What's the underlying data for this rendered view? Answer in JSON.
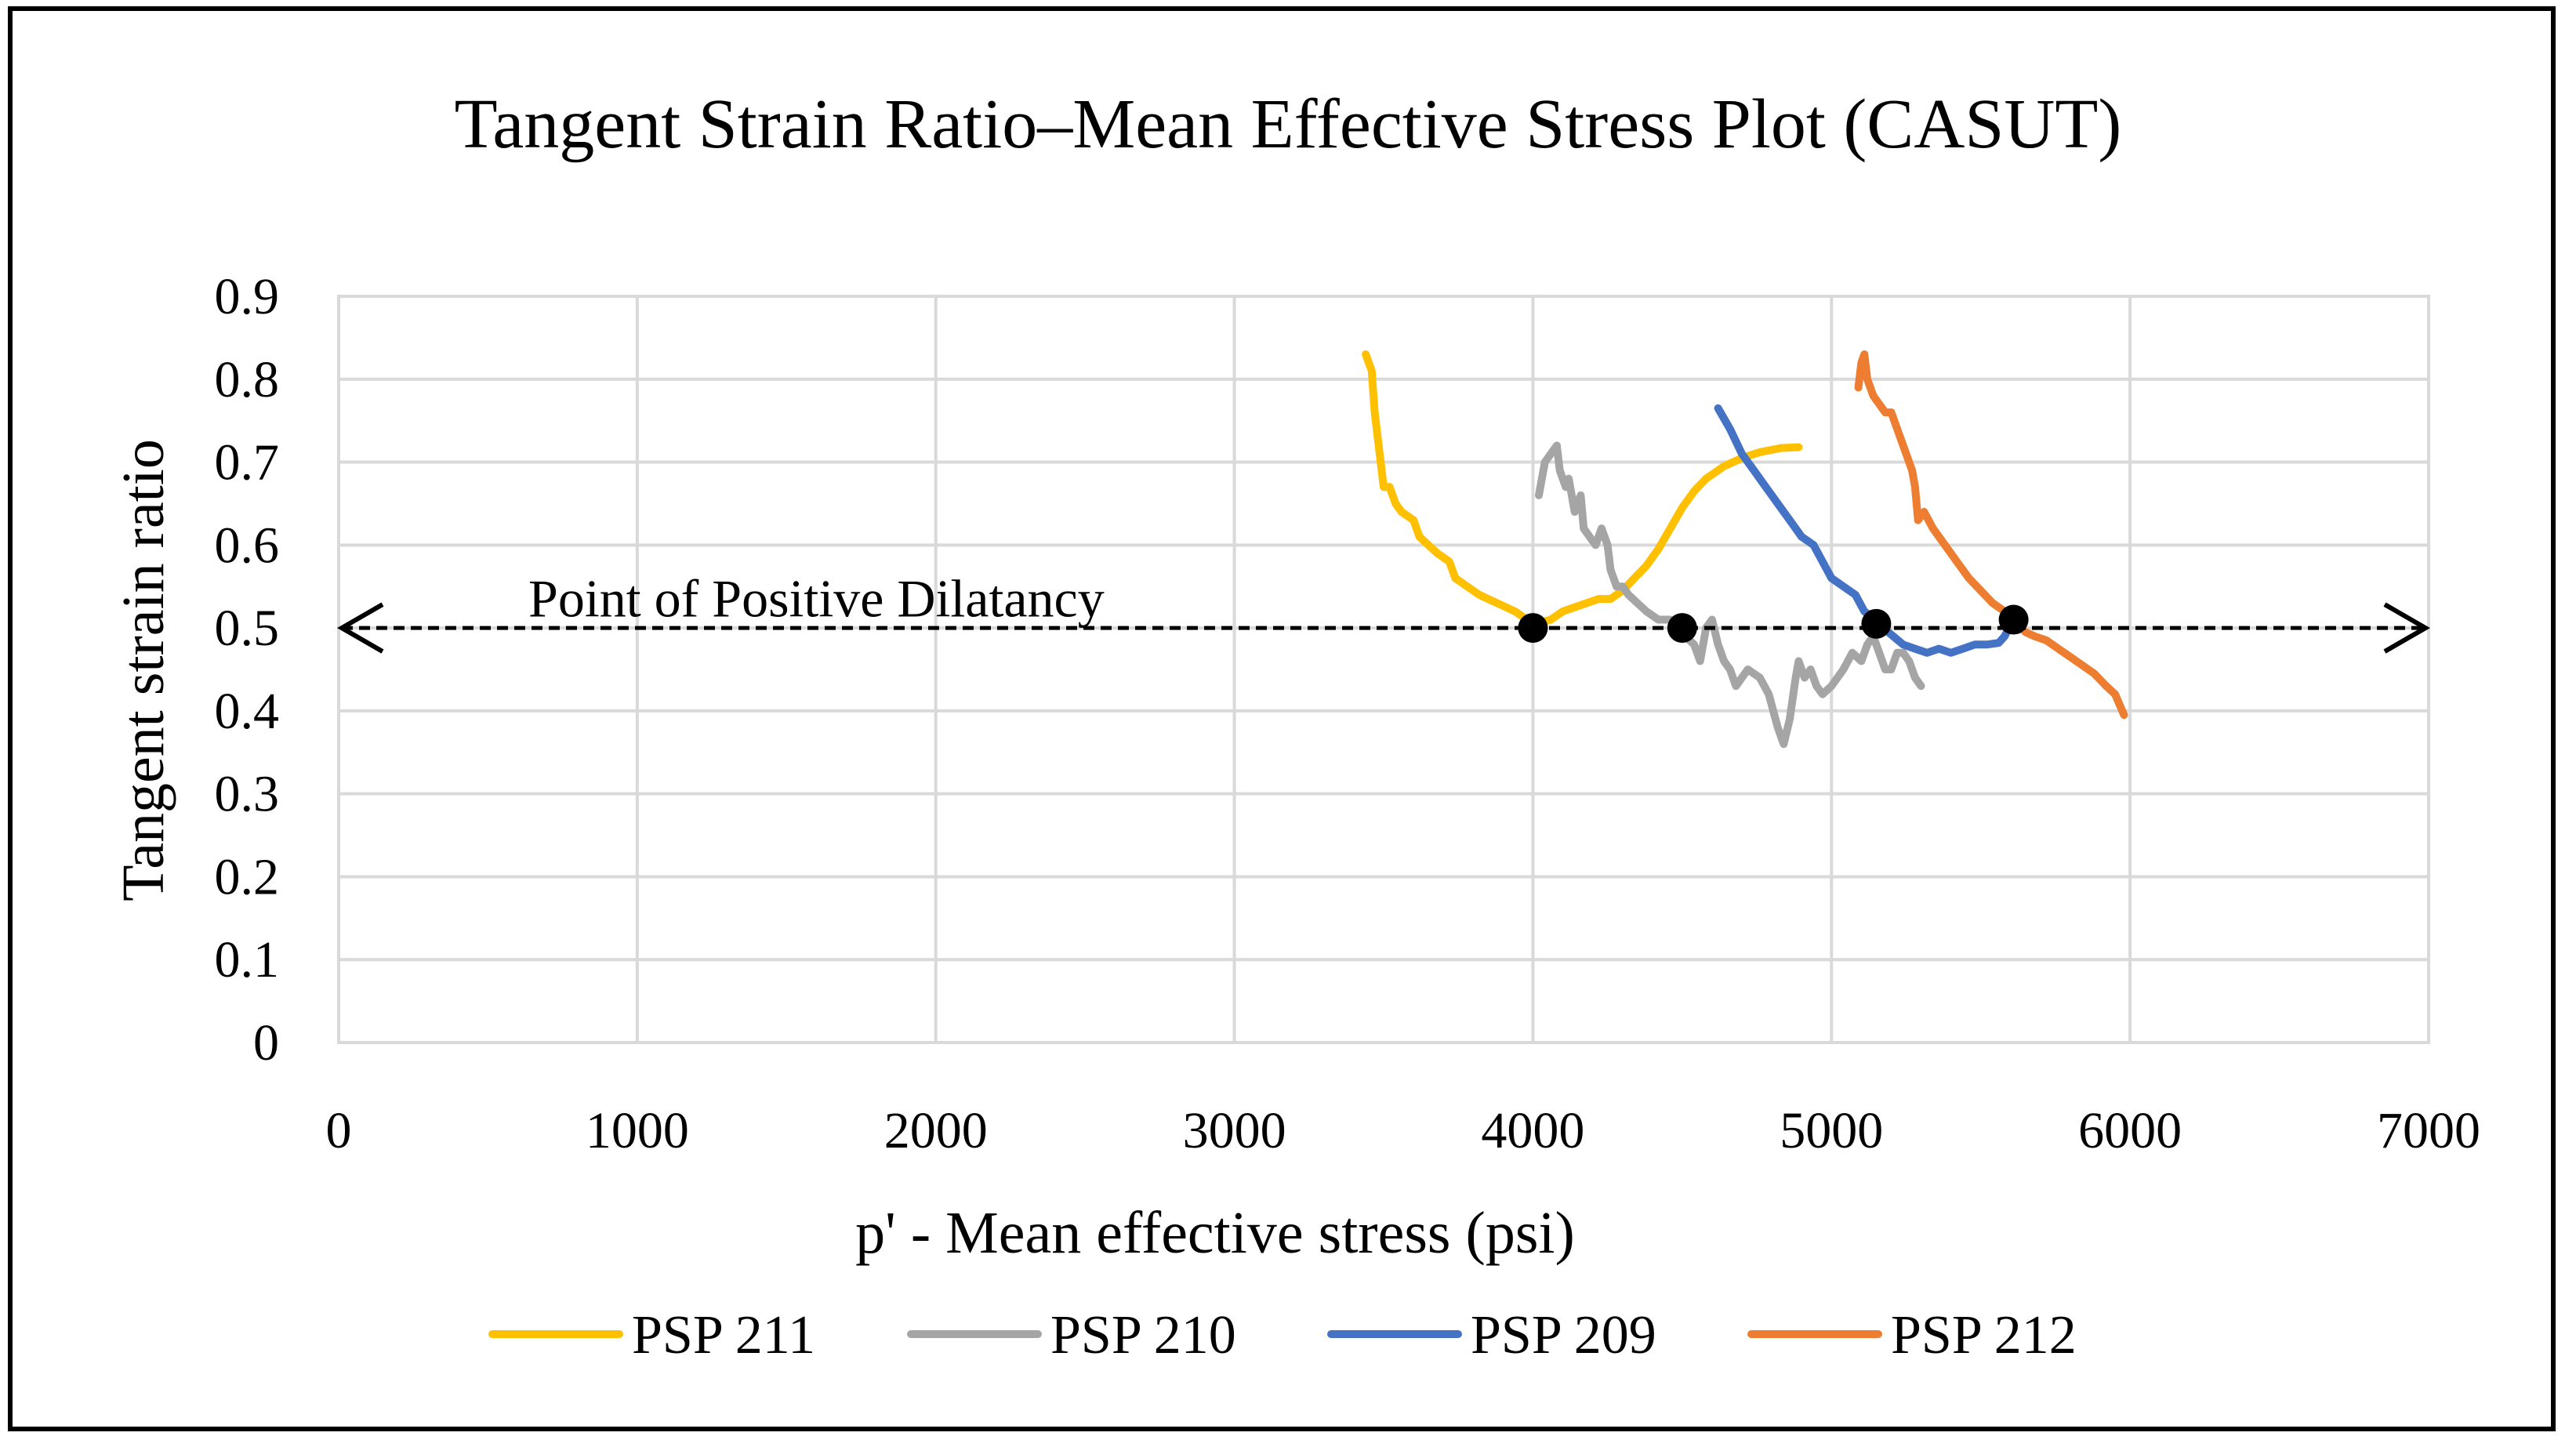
{
  "chart_data": {
    "type": "line",
    "title": "Tangent Strain Ratio–Mean Effective Stress Plot (CASUT)",
    "xlabel": "p' - Mean effective stress (psi)",
    "ylabel": "Tangent strain ratio",
    "xlim": [
      0,
      7000
    ],
    "ylim": [
      0,
      0.9
    ],
    "x_ticks": [
      0,
      1000,
      2000,
      3000,
      4000,
      5000,
      6000,
      7000
    ],
    "y_ticks": [
      0,
      0.1,
      0.2,
      0.3,
      0.4,
      0.5,
      0.6,
      0.7,
      0.8,
      0.9
    ],
    "x_tick_labels": [
      "0",
      "1000",
      "2000",
      "3000",
      "4000",
      "5000",
      "6000",
      "7000"
    ],
    "y_tick_labels": [
      "0",
      "0.1",
      "0.2",
      "0.3",
      "0.4",
      "0.5",
      "0.6",
      "0.7",
      "0.8",
      "0.9"
    ],
    "grid": true,
    "legend_position": "bottom",
    "series": [
      {
        "name": "PSP 211",
        "color": "#FFC000",
        "points": [
          [
            3440,
            0.83
          ],
          [
            3460,
            0.81
          ],
          [
            3470,
            0.76
          ],
          [
            3490,
            0.7
          ],
          [
            3500,
            0.67
          ],
          [
            3520,
            0.67
          ],
          [
            3540,
            0.65
          ],
          [
            3560,
            0.64
          ],
          [
            3600,
            0.63
          ],
          [
            3620,
            0.61
          ],
          [
            3650,
            0.6
          ],
          [
            3680,
            0.59
          ],
          [
            3720,
            0.58
          ],
          [
            3740,
            0.56
          ],
          [
            3780,
            0.55
          ],
          [
            3820,
            0.54
          ],
          [
            3880,
            0.53
          ],
          [
            3940,
            0.52
          ],
          [
            3980,
            0.51
          ],
          [
            4010,
            0.505
          ],
          [
            4060,
            0.51
          ],
          [
            4100,
            0.52
          ],
          [
            4140,
            0.525
          ],
          [
            4180,
            0.53
          ],
          [
            4220,
            0.535
          ],
          [
            4260,
            0.535
          ],
          [
            4300,
            0.545
          ],
          [
            4340,
            0.56
          ],
          [
            4380,
            0.575
          ],
          [
            4420,
            0.595
          ],
          [
            4460,
            0.62
          ],
          [
            4500,
            0.645
          ],
          [
            4540,
            0.665
          ],
          [
            4580,
            0.68
          ],
          [
            4640,
            0.695
          ],
          [
            4700,
            0.705
          ],
          [
            4760,
            0.712
          ],
          [
            4830,
            0.717
          ],
          [
            4890,
            0.718
          ]
        ]
      },
      {
        "name": "PSP 210",
        "color": "#A5A5A5",
        "points": [
          [
            4020,
            0.66
          ],
          [
            4040,
            0.7
          ],
          [
            4060,
            0.71
          ],
          [
            4080,
            0.72
          ],
          [
            4090,
            0.69
          ],
          [
            4110,
            0.67
          ],
          [
            4120,
            0.68
          ],
          [
            4140,
            0.64
          ],
          [
            4160,
            0.66
          ],
          [
            4170,
            0.62
          ],
          [
            4190,
            0.61
          ],
          [
            4210,
            0.6
          ],
          [
            4230,
            0.62
          ],
          [
            4250,
            0.6
          ],
          [
            4260,
            0.57
          ],
          [
            4280,
            0.55
          ],
          [
            4300,
            0.55
          ],
          [
            4320,
            0.54
          ],
          [
            4350,
            0.53
          ],
          [
            4380,
            0.52
          ],
          [
            4420,
            0.51
          ],
          [
            4460,
            0.51
          ],
          [
            4490,
            0.5
          ],
          [
            4510,
            0.49
          ],
          [
            4540,
            0.48
          ],
          [
            4560,
            0.46
          ],
          [
            4580,
            0.5
          ],
          [
            4600,
            0.51
          ],
          [
            4620,
            0.48
          ],
          [
            4640,
            0.46
          ],
          [
            4660,
            0.45
          ],
          [
            4680,
            0.43
          ],
          [
            4700,
            0.44
          ],
          [
            4720,
            0.45
          ],
          [
            4760,
            0.44
          ],
          [
            4790,
            0.42
          ],
          [
            4820,
            0.38
          ],
          [
            4840,
            0.36
          ],
          [
            4860,
            0.39
          ],
          [
            4880,
            0.44
          ],
          [
            4890,
            0.46
          ],
          [
            4910,
            0.44
          ],
          [
            4930,
            0.45
          ],
          [
            4950,
            0.43
          ],
          [
            4970,
            0.42
          ],
          [
            5000,
            0.43
          ],
          [
            5040,
            0.45
          ],
          [
            5070,
            0.47
          ],
          [
            5100,
            0.46
          ],
          [
            5120,
            0.48
          ],
          [
            5140,
            0.49
          ],
          [
            5160,
            0.47
          ],
          [
            5180,
            0.45
          ],
          [
            5200,
            0.45
          ],
          [
            5220,
            0.47
          ],
          [
            5240,
            0.47
          ],
          [
            5260,
            0.46
          ],
          [
            5280,
            0.44
          ],
          [
            5300,
            0.43
          ]
        ]
      },
      {
        "name": "PSP 209",
        "color": "#4472C4",
        "points": [
          [
            4620,
            0.765
          ],
          [
            4660,
            0.74
          ],
          [
            4700,
            0.71
          ],
          [
            4740,
            0.69
          ],
          [
            4780,
            0.67
          ],
          [
            4820,
            0.65
          ],
          [
            4860,
            0.63
          ],
          [
            4900,
            0.61
          ],
          [
            4940,
            0.6
          ],
          [
            4970,
            0.58
          ],
          [
            5000,
            0.56
          ],
          [
            5040,
            0.55
          ],
          [
            5080,
            0.54
          ],
          [
            5110,
            0.52
          ],
          [
            5150,
            0.51
          ],
          [
            5190,
            0.495
          ],
          [
            5240,
            0.48
          ],
          [
            5280,
            0.475
          ],
          [
            5320,
            0.47
          ],
          [
            5360,
            0.475
          ],
          [
            5400,
            0.47
          ],
          [
            5440,
            0.475
          ],
          [
            5480,
            0.48
          ],
          [
            5520,
            0.48
          ],
          [
            5560,
            0.482
          ],
          [
            5580,
            0.49
          ],
          [
            5600,
            0.505
          ]
        ]
      },
      {
        "name": "PSP 212",
        "color": "#ED7D31",
        "points": [
          [
            5090,
            0.79
          ],
          [
            5100,
            0.82
          ],
          [
            5110,
            0.83
          ],
          [
            5120,
            0.8
          ],
          [
            5140,
            0.78
          ],
          [
            5160,
            0.77
          ],
          [
            5180,
            0.76
          ],
          [
            5200,
            0.76
          ],
          [
            5220,
            0.74
          ],
          [
            5250,
            0.71
          ],
          [
            5270,
            0.69
          ],
          [
            5280,
            0.67
          ],
          [
            5290,
            0.63
          ],
          [
            5310,
            0.64
          ],
          [
            5340,
            0.62
          ],
          [
            5380,
            0.6
          ],
          [
            5420,
            0.58
          ],
          [
            5460,
            0.56
          ],
          [
            5500,
            0.545
          ],
          [
            5540,
            0.53
          ],
          [
            5580,
            0.52
          ],
          [
            5620,
            0.505
          ],
          [
            5650,
            0.495
          ],
          [
            5680,
            0.49
          ],
          [
            5720,
            0.485
          ],
          [
            5760,
            0.475
          ],
          [
            5800,
            0.465
          ],
          [
            5840,
            0.455
          ],
          [
            5880,
            0.445
          ],
          [
            5920,
            0.43
          ],
          [
            5950,
            0.42
          ],
          [
            5980,
            0.395
          ]
        ]
      }
    ],
    "dilatancy_points": [
      [
        4000,
        0.5
      ],
      [
        4500,
        0.5
      ],
      [
        5150,
        0.505
      ],
      [
        5610,
        0.51
      ]
    ],
    "reference_line": {
      "y": 0.5,
      "x_start": 0,
      "x_end": 7000,
      "style": "dashed, double-headed arrow"
    },
    "annotations": [
      {
        "text": "Point of Positive Dilatancy",
        "x": 1600,
        "y": 0.525
      }
    ]
  }
}
